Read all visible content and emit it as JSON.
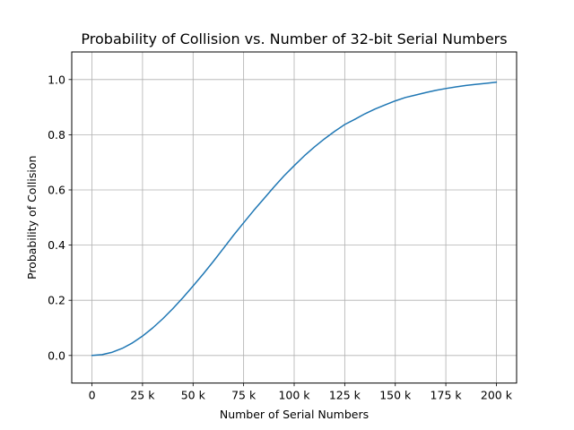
{
  "chart_data": {
    "type": "line",
    "title": "Probability of Collision vs. Number of 32-bit Serial Numbers",
    "xlabel": "Number of Serial Numbers",
    "ylabel": "Probability of Collision",
    "xlim": [
      -10000,
      210000
    ],
    "ylim": [
      -0.1,
      1.1
    ],
    "grid": true,
    "x_ticks": [
      {
        "value": 0,
        "label": "0"
      },
      {
        "value": 25000,
        "label": "25 k"
      },
      {
        "value": 50000,
        "label": "50 k"
      },
      {
        "value": 75000,
        "label": "75 k"
      },
      {
        "value": 100000,
        "label": "100 k"
      },
      {
        "value": 125000,
        "label": "125 k"
      },
      {
        "value": 150000,
        "label": "150 k"
      },
      {
        "value": 175000,
        "label": "175 k"
      },
      {
        "value": 200000,
        "label": "200 k"
      }
    ],
    "y_ticks": [
      {
        "value": 0.0,
        "label": "0.0"
      },
      {
        "value": 0.2,
        "label": "0.2"
      },
      {
        "value": 0.4,
        "label": "0.4"
      },
      {
        "value": 0.6,
        "label": "0.6"
      },
      {
        "value": 0.8,
        "label": "0.8"
      },
      {
        "value": 1.0,
        "label": "1.0"
      }
    ],
    "series": [
      {
        "color": "#1f77b4",
        "x": [
          0,
          5000,
          10000,
          15000,
          20000,
          25000,
          30000,
          35000,
          40000,
          45000,
          50000,
          55000,
          60000,
          65000,
          70000,
          75000,
          80000,
          85000,
          90000,
          95000,
          100000,
          105000,
          110000,
          115000,
          120000,
          125000,
          130000,
          135000,
          140000,
          145000,
          150000,
          155000,
          160000,
          165000,
          170000,
          175000,
          180000,
          185000,
          190000,
          195000,
          200000
        ],
        "y": [
          0.0,
          0.0029,
          0.0116,
          0.0258,
          0.0455,
          0.0702,
          0.0996,
          0.1329,
          0.1698,
          0.2096,
          0.2517,
          0.2953,
          0.3406,
          0.3879,
          0.4356,
          0.4809,
          0.5256,
          0.568,
          0.6106,
          0.6511,
          0.6878,
          0.7234,
          0.7556,
          0.7852,
          0.8122,
          0.837,
          0.8558,
          0.8759,
          0.8931,
          0.9083,
          0.9227,
          0.935,
          0.9438,
          0.9526,
          0.9609,
          0.9675,
          0.9733,
          0.9786,
          0.9828,
          0.9865,
          0.9903
        ]
      }
    ]
  }
}
